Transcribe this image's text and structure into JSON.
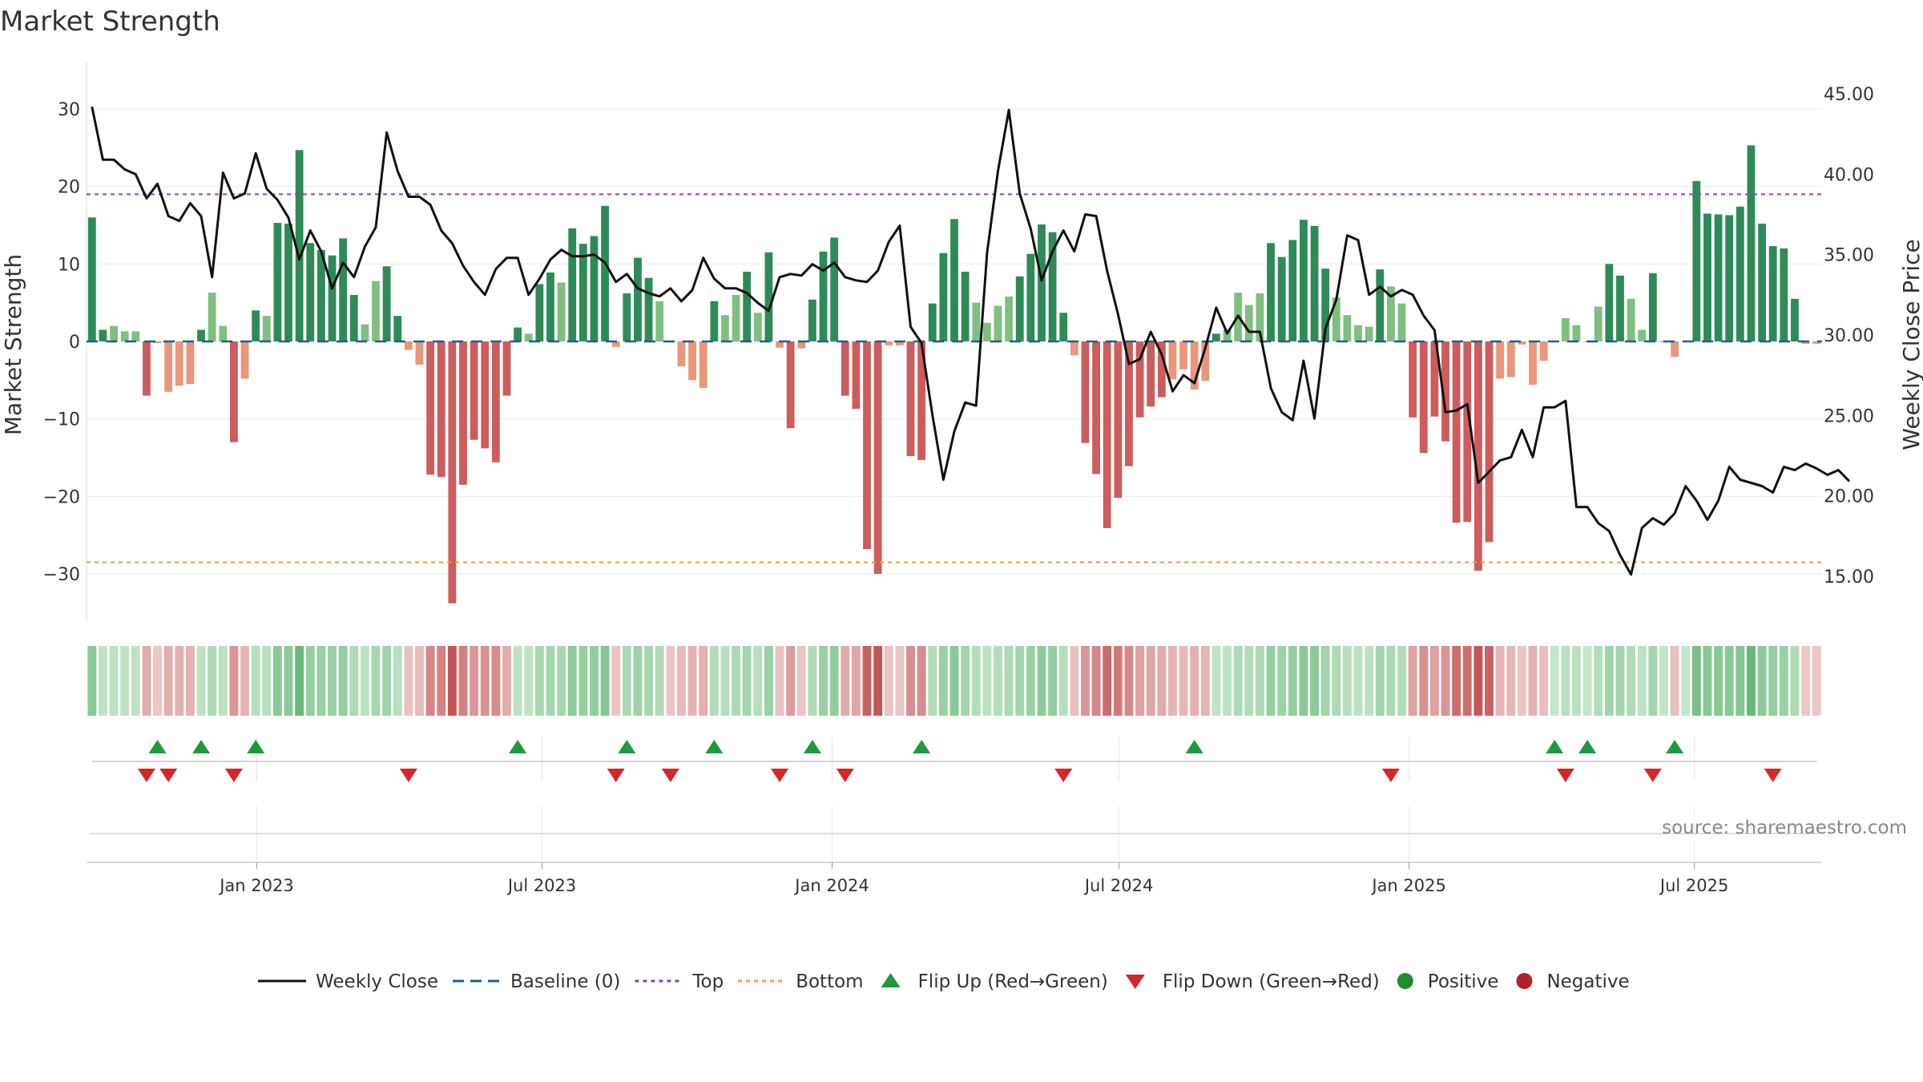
{
  "chart_data": {
    "type": "bar",
    "title": "Market Strength",
    "ylabel_left": "Market Strength",
    "ylabel_right": "Weekly Close Price",
    "ylim_left": [
      -36,
      36
    ],
    "ylim_right": [
      12.25,
      46.95
    ],
    "yticks_left": [
      30,
      20,
      10,
      0,
      -10,
      -20,
      -30
    ],
    "ytick_labels_left": [
      "30",
      "20",
      "10",
      "0",
      "−10",
      "−20",
      "−30"
    ],
    "yticks_right": [
      45,
      40,
      35,
      30,
      25,
      20,
      15
    ],
    "ytick_labels_right": [
      "45.00",
      "40.00",
      "35.00",
      "30.00",
      "25.00",
      "20.00",
      "15.00"
    ],
    "x_range": [
      "2022-09-15",
      "2025-09-20"
    ],
    "x_ticks": [
      {
        "date": "2023-01-01",
        "label": "Jan 2023"
      },
      {
        "date": "2023-07-01",
        "label": "Jul 2023"
      },
      {
        "date": "2024-01-01",
        "label": "Jan 2024"
      },
      {
        "date": "2024-07-01",
        "label": "Jul 2024"
      },
      {
        "date": "2025-01-01",
        "label": "Jan 2025"
      },
      {
        "date": "2025-07-01",
        "label": "Jul 2025"
      }
    ],
    "top_threshold": 19,
    "bottom_threshold": -28.5,
    "strength": [
      16,
      1.5,
      2,
      1.3,
      1.3,
      -7,
      -0.2,
      -6.5,
      -5.7,
      -5.5,
      1.5,
      6.3,
      2,
      -13,
      -4.8,
      4,
      3.3,
      15.3,
      15.2,
      24.7,
      12.7,
      11.8,
      11.1,
      13.3,
      6,
      2.2,
      7.8,
      9.7,
      3.3,
      -1.1,
      -3,
      -17.2,
      -17.5,
      -33.8,
      -18.5,
      -12.7,
      -13.8,
      -15.6,
      -7,
      1.8,
      1,
      7.4,
      8.9,
      7.6,
      14.6,
      12.6,
      13.6,
      17.5,
      -0.7,
      6.2,
      10.8,
      8.2,
      5.2,
      -0.1,
      -3.2,
      -5,
      -6,
      5.2,
      3.4,
      6,
      9,
      3.7,
      11.5,
      -0.8,
      -11.2,
      -0.9,
      5.4,
      11.6,
      13.4,
      -7,
      -8.7,
      -26.8,
      -30,
      -0.5,
      -0.5,
      -14.8,
      -15.3,
      4.9,
      11.4,
      15.8,
      9,
      5,
      2.4,
      4.6,
      5.8,
      8.4,
      11.3,
      15.1,
      14.1,
      3.7,
      -1.8,
      -13.1,
      -17.1,
      -24.1,
      -20.2,
      -16.1,
      -9.8,
      -8.4,
      -7.2,
      -4.9,
      -3.6,
      -6.2,
      -5.1,
      1,
      1.5,
      6.3,
      4.7,
      6.2,
      12.7,
      10.9,
      13.1,
      15.7,
      14.9,
      9.4,
      5.7,
      3.4,
      2.1,
      1.9,
      9.3,
      7.1,
      4.9,
      -9.8,
      -14.4,
      -9.7,
      -12.9,
      -23.4,
      -23.3,
      -29.6,
      -25.9,
      -4.8,
      -4.6,
      -0.4,
      -5.6,
      -2.5,
      0,
      3,
      2.1,
      0,
      4.5,
      10,
      8.5,
      5.5,
      1.5,
      8.8,
      0,
      -2,
      0,
      20.7,
      16.5,
      16.4,
      16.3,
      17.4,
      25.3,
      15.2,
      12.3,
      12,
      5.5,
      -0.3,
      -0.3
    ],
    "weekly_close": [
      44.2,
      40.9,
      40.9,
      40.3,
      40.0,
      38.5,
      39.4,
      37.4,
      37.1,
      38.2,
      37.4,
      33.6,
      40.1,
      38.5,
      38.8,
      41.3,
      39.1,
      38.4,
      37.3,
      34.7,
      36.5,
      35.2,
      32.9,
      34.5,
      33.6,
      35.5,
      36.7,
      42.6,
      40.2,
      38.6,
      38.6,
      38.1,
      36.5,
      35.7,
      34.3,
      33.3,
      32.5,
      34.1,
      34.8,
      34.8,
      32.5,
      33.5,
      34.7,
      35.3,
      34.9,
      34.9,
      35.0,
      34.5,
      33.3,
      33.8,
      32.9,
      32.6,
      32.4,
      32.9,
      32.1,
      32.8,
      34.8,
      33.5,
      32.9,
      32.9,
      32.6,
      32.0,
      31.5,
      33.6,
      33.8,
      33.7,
      34.4,
      34.0,
      34.5,
      33.6,
      33.4,
      33.3,
      34.0,
      35.8,
      36.8,
      30.5,
      29.5,
      25.0,
      21.0,
      24.0,
      25.8,
      25.6,
      35.1,
      40.2,
      44.0,
      38.8,
      36.6,
      33.4,
      35.2,
      36.5,
      35.2,
      37.5,
      37.4,
      34.0,
      31.3,
      28.2,
      28.5,
      30.2,
      28.8,
      26.5,
      27.5,
      27.0,
      29.2,
      31.7,
      30.1,
      31.2,
      30.2,
      30.2,
      26.7,
      25.2,
      24.7,
      28.4,
      24.8,
      30.4,
      32.2,
      36.2,
      35.9,
      32.5,
      33.0,
      32.4,
      32.8,
      32.5,
      31.2,
      30.3,
      25.2,
      25.3,
      25.7,
      20.8,
      21.5,
      22.2,
      22.4,
      24.1,
      22.4,
      25.5,
      25.5,
      25.9,
      19.3,
      19.3,
      18.3,
      17.8,
      16.3,
      15.1,
      18.0,
      18.6,
      18.2,
      18.9,
      20.6,
      19.7,
      18.5,
      19.7,
      21.8,
      21.0,
      20.8,
      20.6,
      20.2,
      21.8,
      21.6,
      22.0,
      21.7,
      21.3,
      21.6,
      20.9
    ],
    "flip_up_weeks": [
      6,
      10,
      15,
      39,
      49,
      57,
      66,
      76,
      101,
      134,
      137,
      145
    ],
    "flip_down_weeks": [
      5,
      7,
      13,
      29,
      48,
      53,
      63,
      69,
      89,
      119,
      135,
      143,
      154
    ],
    "source": "source: sharemaestro.com",
    "legend": [
      {
        "label": "Weekly Close",
        "kind": "line-solid",
        "color": "#111111"
      },
      {
        "label": "Baseline (0)",
        "kind": "line-dash",
        "color": "#1f5f8b"
      },
      {
        "label": "Top",
        "kind": "line-dot",
        "color": "#8e44ad"
      },
      {
        "label": "Bottom",
        "kind": "line-dot",
        "color": "#f39c33"
      },
      {
        "label": "Flip Up (Red→Green)",
        "kind": "tri-up",
        "color": "#1e9a3c"
      },
      {
        "label": "Flip Down (Green→Red)",
        "kind": "tri-down",
        "color": "#d62728"
      },
      {
        "label": "Positive",
        "kind": "dot",
        "color": "#1e8f2e"
      },
      {
        "label": "Negative",
        "kind": "dot",
        "color": "#b0212b"
      }
    ],
    "colors": {
      "positive_strong": "#2e8b57",
      "positive_weak": "#7fbf7f",
      "negative_strong": "#cd5c5c",
      "negative_weak": "#e9967a",
      "close_line": "#111111",
      "baseline": "#1f5f8b",
      "top": "#8e44ad",
      "bottom": "#f39c33",
      "flip_up": "#1e9a3c",
      "flip_down": "#d62728"
    }
  }
}
